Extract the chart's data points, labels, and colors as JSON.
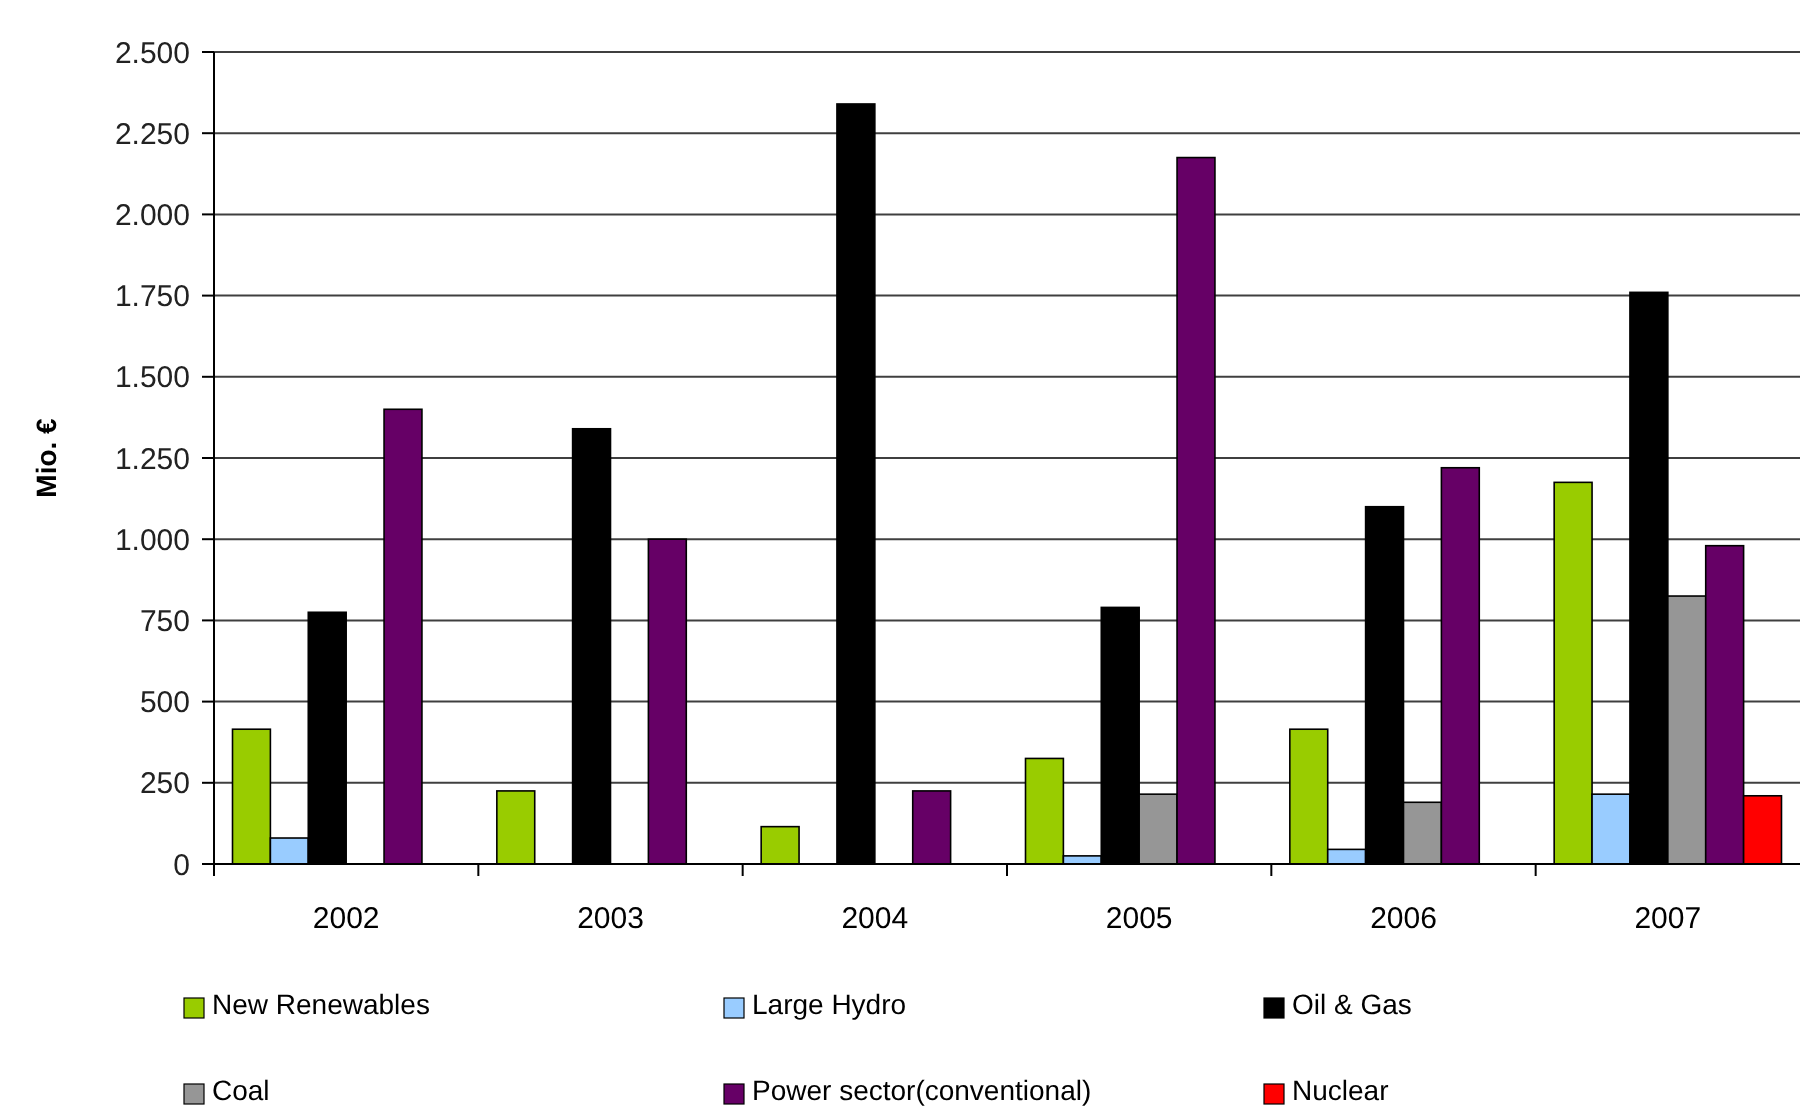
{
  "chart_data": {
    "type": "bar",
    "ylabel": "Mio. €",
    "categories": [
      "2002",
      "2003",
      "2004",
      "2005",
      "2006",
      "2007"
    ],
    "series": [
      {
        "name": "New  Renewables",
        "color": "#99cc00",
        "values": [
          415,
          225,
          115,
          325,
          415,
          1175
        ]
      },
      {
        "name": "Large Hydro",
        "color": "#99ccff",
        "values": [
          80,
          null,
          null,
          25,
          45,
          215
        ]
      },
      {
        "name": "Oil & Gas",
        "color": "#000000",
        "values": [
          775,
          1340,
          2340,
          790,
          1100,
          1760
        ]
      },
      {
        "name": "Coal",
        "color": "#969696",
        "values": [
          null,
          null,
          null,
          215,
          190,
          825
        ]
      },
      {
        "name": "Power sector(conventional)",
        "color": "#660066",
        "values": [
          1400,
          1000,
          225,
          2175,
          1220,
          980
        ]
      },
      {
        "name": "Nuclear",
        "color": "#ff0000",
        "values": [
          null,
          null,
          null,
          null,
          null,
          210
        ]
      }
    ],
    "ylim": [
      0,
      2500
    ],
    "yticks": [
      {
        "value": 0,
        "label": "0"
      },
      {
        "value": 250,
        "label": "250"
      },
      {
        "value": 500,
        "label": "500"
      },
      {
        "value": 750,
        "label": "750"
      },
      {
        "value": 1000,
        "label": "1.000"
      },
      {
        "value": 1250,
        "label": "1.250"
      },
      {
        "value": 1500,
        "label": "1.500"
      },
      {
        "value": 1750,
        "label": "1.750"
      },
      {
        "value": 2000,
        "label": "2.000"
      },
      {
        "value": 2250,
        "label": "2.250"
      },
      {
        "value": 2500,
        "label": "2.500"
      }
    ],
    "grid": "y",
    "legend": "bottom"
  }
}
